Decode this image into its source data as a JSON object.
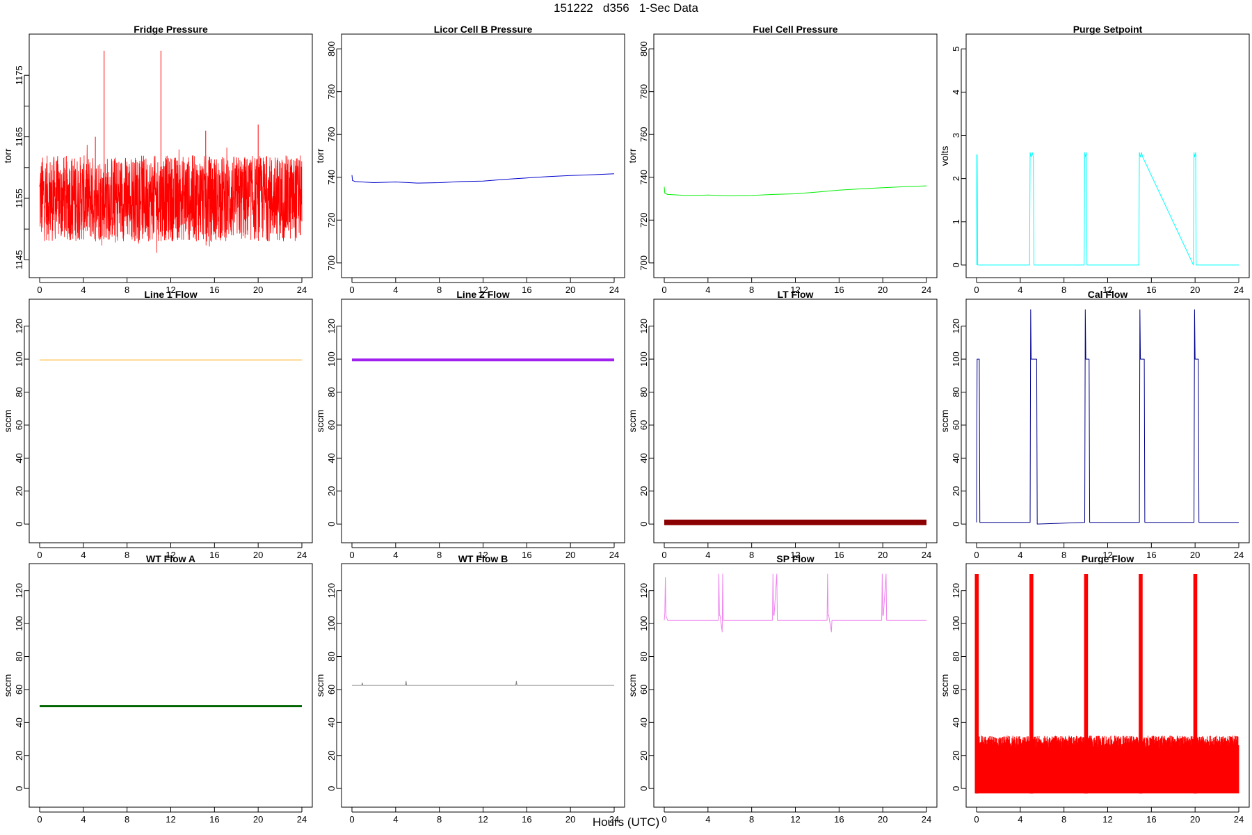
{
  "figure": {
    "title": "151222   d356   1-Sec Data",
    "xlabel": "Hours (UTC)"
  },
  "chart_data": [
    {
      "type": "line",
      "title": "Fridge Pressure",
      "ylabel": "torr",
      "color": "#ff0000",
      "xlim": [
        0,
        24
      ],
      "ylim": [
        1143.8,
        1180
      ],
      "xticks": [
        0,
        4,
        8,
        12,
        16,
        20,
        24
      ],
      "yticks": [
        1145,
        1155,
        1165,
        1175
      ],
      "ytick_minor": [
        1150,
        1160,
        1170
      ],
      "series": [
        {
          "gen": "noise",
          "base": 1155,
          "amp": 7,
          "spikes": [
            {
              "x": 5.9,
              "y": 1179
            },
            {
              "x": 11.1,
              "y": 1179
            },
            {
              "x": 5.1,
              "y": 1165
            },
            {
              "x": 15.2,
              "y": 1166
            },
            {
              "x": 20.0,
              "y": 1167
            }
          ],
          "x": [
            0,
            24
          ]
        }
      ]
    },
    {
      "type": "line",
      "title": "Licor Cell B Pressure",
      "ylabel": "torr",
      "color": "#0000cc",
      "xlim": [
        0,
        24
      ],
      "ylim": [
        698,
        802
      ],
      "xticks": [
        0,
        4,
        8,
        12,
        16,
        20,
        24
      ],
      "yticks": [
        700,
        720,
        740,
        760,
        780,
        800
      ],
      "series": [
        {
          "x": [
            0,
            0.05,
            0.3,
            2,
            4,
            6,
            8,
            10,
            12,
            14,
            16,
            18,
            20,
            22,
            24
          ],
          "y": [
            741,
            738.5,
            738,
            737.5,
            737.8,
            737.3,
            737.5,
            738,
            738.2,
            739,
            739.7,
            740.3,
            740.8,
            741.2,
            741.6
          ]
        }
      ]
    },
    {
      "type": "line",
      "title": "Fuel Cell Pressure",
      "ylabel": "torr",
      "color": "#00ee00",
      "xlim": [
        0,
        24
      ],
      "ylim": [
        698,
        802
      ],
      "xticks": [
        0,
        4,
        8,
        12,
        16,
        20,
        24
      ],
      "yticks": [
        700,
        720,
        740,
        760,
        780,
        800
      ],
      "series": [
        {
          "x": [
            0,
            0.05,
            0.3,
            2,
            4,
            6,
            8,
            10,
            12,
            14,
            16,
            18,
            20,
            22,
            24
          ],
          "y": [
            735.5,
            732.5,
            732,
            731.5,
            731.7,
            731.3,
            731.5,
            732,
            732.3,
            733.1,
            734,
            734.6,
            735.1,
            735.6,
            736
          ]
        }
      ]
    },
    {
      "type": "line",
      "title": "Purge Setpoint",
      "ylabel": "volts",
      "color": "#00ffff",
      "xlim": [
        0,
        24
      ],
      "ylim": [
        -0.05,
        5.1
      ],
      "xticks": [
        0,
        4,
        8,
        12,
        16,
        20,
        24
      ],
      "yticks": [
        0,
        1,
        2,
        3,
        4,
        5
      ],
      "series": [
        {
          "x": [
            0,
            0.02,
            0.06,
            0.1,
            4.85,
            4.9,
            5.0,
            5.1,
            5.2,
            5.25,
            9.85,
            9.9,
            9.95,
            10.05,
            10.1,
            14.85,
            14.9,
            15.0,
            15.1,
            15.2,
            19.85,
            19.9,
            19.95,
            20.05,
            20.1,
            24
          ],
          "y": [
            0,
            2.55,
            2.55,
            0,
            0,
            2.6,
            2.5,
            2.6,
            2.5,
            0,
            0,
            2.6,
            2.5,
            2.6,
            0,
            0,
            2.6,
            2.5,
            2.6,
            2.5,
            0,
            2.6,
            2.5,
            2.6,
            0,
            0
          ]
        }
      ]
    },
    {
      "type": "line",
      "title": "Line 1 Flow",
      "ylabel": "sccm",
      "color": "#ffa500",
      "xlim": [
        0,
        24
      ],
      "ylim": [
        -5,
        130
      ],
      "xticks": [
        0,
        4,
        8,
        12,
        16,
        20,
        24
      ],
      "yticks": [
        0,
        20,
        40,
        60,
        80,
        100,
        120
      ],
      "series": [
        {
          "x": [
            0,
            24
          ],
          "y": [
            99.5,
            99.5
          ]
        }
      ]
    },
    {
      "type": "line",
      "title": "Line 2 Flow",
      "ylabel": "sccm",
      "color": "#a020f0",
      "lw": 4,
      "xlim": [
        0,
        24
      ],
      "ylim": [
        -5,
        130
      ],
      "xticks": [
        0,
        4,
        8,
        12,
        16,
        20,
        24
      ],
      "yticks": [
        0,
        20,
        40,
        60,
        80,
        100,
        120
      ],
      "series": [
        {
          "x": [
            0,
            24
          ],
          "y": [
            99.5,
            99.5
          ]
        }
      ]
    },
    {
      "type": "line",
      "title": "LT Flow",
      "ylabel": "sccm",
      "color": "#8b0000",
      "lw": 8,
      "xlim": [
        0,
        24
      ],
      "ylim": [
        -5,
        130
      ],
      "xticks": [
        0,
        4,
        8,
        12,
        16,
        20,
        24
      ],
      "yticks": [
        0,
        20,
        40,
        60,
        80,
        100,
        120
      ],
      "series": [
        {
          "x": [
            0,
            24
          ],
          "y": [
            1,
            1
          ]
        }
      ]
    },
    {
      "type": "line",
      "title": "Cal Flow",
      "ylabel": "sccm",
      "color": "#00008b",
      "xlim": [
        0,
        24
      ],
      "ylim": [
        -5,
        130
      ],
      "xticks": [
        0,
        4,
        8,
        12,
        16,
        20,
        24
      ],
      "yticks": [
        0,
        20,
        40,
        60,
        80,
        100,
        120
      ],
      "series": [
        {
          "x": [
            0,
            0.05,
            0.1,
            0.25,
            0.3,
            4.9,
            4.95,
            5.0,
            5.05,
            5.5,
            5.55,
            9.9,
            9.95,
            10.0,
            10.05,
            10.3,
            10.35,
            14.9,
            14.95,
            15.0,
            15.05,
            15.35,
            15.4,
            19.9,
            19.95,
            20.0,
            20.05,
            20.3,
            20.35,
            24
          ],
          "y": [
            1,
            100,
            100,
            100,
            1,
            1,
            130,
            100,
            100,
            100,
            0,
            1,
            130,
            100,
            100,
            100,
            1,
            1,
            130,
            100,
            100,
            100,
            1,
            1,
            130,
            100,
            100,
            100,
            1,
            1
          ]
        }
      ]
    },
    {
      "type": "line",
      "title": "WT Flow A",
      "ylabel": "sccm",
      "color": "#006400",
      "lw": 3,
      "xlim": [
        0,
        24
      ],
      "ylim": [
        -5,
        130
      ],
      "xticks": [
        0,
        4,
        8,
        12,
        16,
        20,
        24
      ],
      "yticks": [
        0,
        20,
        40,
        60,
        80,
        100,
        120
      ],
      "series": [
        {
          "x": [
            0,
            24
          ],
          "y": [
            50,
            50
          ]
        }
      ]
    },
    {
      "type": "line",
      "title": "WT Flow B",
      "ylabel": "sccm",
      "color": "#808080",
      "xlim": [
        0,
        24
      ],
      "ylim": [
        -5,
        130
      ],
      "xticks": [
        0,
        4,
        8,
        12,
        16,
        20,
        24
      ],
      "yticks": [
        0,
        20,
        40,
        60,
        80,
        100,
        120
      ],
      "series": [
        {
          "x": [
            0,
            0.9,
            0.95,
            1.0,
            4.9,
            4.95,
            5.0,
            15.0,
            15.05,
            15.1,
            24
          ],
          "y": [
            62.5,
            62.5,
            64,
            62.5,
            62.5,
            65,
            62.5,
            62.5,
            65,
            62.5,
            62.5
          ]
        }
      ]
    },
    {
      "type": "line",
      "title": "SP Flow",
      "ylabel": "sccm",
      "color": "#ee82ee",
      "xlim": [
        0,
        24
      ],
      "ylim": [
        -5,
        130
      ],
      "xticks": [
        0,
        4,
        8,
        12,
        16,
        20,
        24
      ],
      "yticks": [
        0,
        20,
        40,
        60,
        80,
        100,
        120
      ],
      "series": [
        {
          "x": [
            0,
            0.05,
            0.1,
            0.15,
            0.3,
            4.95,
            5.0,
            5.05,
            5.1,
            5.3,
            5.35,
            5.4,
            9.9,
            9.95,
            10.0,
            10.05,
            10.3,
            10.35,
            14.9,
            14.95,
            15.0,
            15.05,
            15.3,
            15.35,
            19.9,
            19.95,
            20.0,
            20.05,
            20.3,
            20.35,
            24
          ],
          "y": [
            102,
            106,
            128,
            105,
            102,
            102,
            130,
            105,
            105,
            95,
            130,
            102,
            102,
            130,
            105,
            105,
            130,
            102,
            102,
            130,
            105,
            105,
            95,
            102,
            102,
            130,
            105,
            105,
            130,
            102,
            102
          ]
        }
      ]
    },
    {
      "type": "line",
      "title": "Purge Flow",
      "ylabel": "sccm",
      "color": "#ff0000",
      "xlim": [
        0,
        24
      ],
      "ylim": [
        -5,
        130
      ],
      "xticks": [
        0,
        4,
        8,
        12,
        16,
        20,
        24
      ],
      "yticks": [
        0,
        20,
        40,
        60,
        80,
        100,
        120
      ],
      "series": [
        {
          "gen": "band",
          "low": -3,
          "high": 32,
          "bursts": [
            0.0,
            5.0,
            10.0,
            15.0,
            20.0
          ],
          "burstTop": 130,
          "x": [
            0,
            24
          ]
        }
      ]
    }
  ]
}
